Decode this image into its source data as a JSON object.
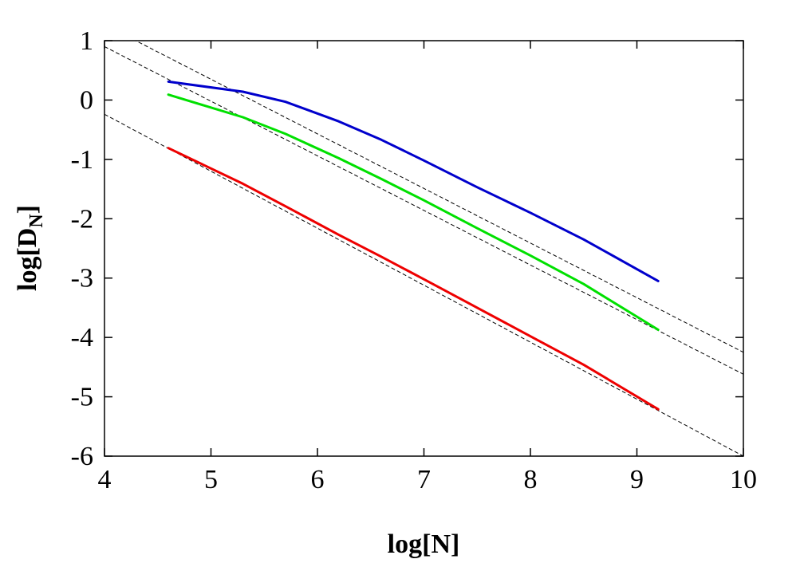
{
  "chart_data": {
    "type": "line",
    "title": "",
    "xlabel": "log[N]",
    "ylabel": {
      "main": "log[D",
      "subscript": "N",
      "close": "]"
    },
    "xlim": [
      4,
      10
    ],
    "ylim": [
      -6,
      1
    ],
    "xticks": [
      4,
      5,
      6,
      7,
      8,
      9,
      10
    ],
    "yticks": [
      -6,
      -5,
      -4,
      -3,
      -2,
      -1,
      0,
      1
    ],
    "xtick_labels": [
      "4",
      "5",
      "6",
      "7",
      "8",
      "9",
      "10"
    ],
    "ytick_labels": [
      "-6",
      "-5",
      "-4",
      "-3",
      "-2",
      "-1",
      "0",
      "1"
    ],
    "grid": false,
    "legend": "none",
    "series": [
      {
        "color": "#0000cc",
        "x": [
          4.6,
          5.3,
          5.7,
          6.2,
          6.6,
          7.0,
          7.5,
          8.0,
          8.5,
          9.2
        ],
        "y": [
          0.31,
          0.14,
          -0.03,
          -0.36,
          -0.67,
          -1.02,
          -1.47,
          -1.9,
          -2.35,
          -3.05
        ]
      },
      {
        "color": "#00e000",
        "x": [
          4.6,
          5.3,
          5.7,
          6.2,
          6.6,
          7.0,
          7.5,
          8.0,
          8.5,
          9.2
        ],
        "y": [
          0.09,
          -0.29,
          -0.57,
          -0.98,
          -1.33,
          -1.69,
          -2.16,
          -2.62,
          -3.1,
          -3.87
        ]
      },
      {
        "color": "#ee0000",
        "x": [
          4.6,
          5.3,
          5.7,
          6.2,
          6.6,
          7.0,
          7.5,
          8.0,
          8.5,
          9.2
        ],
        "y": [
          -0.81,
          -1.41,
          -1.79,
          -2.27,
          -2.64,
          -3.02,
          -3.5,
          -3.98,
          -4.46,
          -5.21
        ]
      }
    ],
    "reference_lines": [
      {
        "style": "dashed",
        "color": "#000000",
        "slope": -0.92,
        "intercept": 4.95
      },
      {
        "style": "dashed",
        "color": "#000000",
        "slope": -0.92,
        "intercept": 4.58
      },
      {
        "style": "dashed",
        "color": "#000000",
        "slope": -0.96,
        "intercept": 3.6
      }
    ]
  }
}
